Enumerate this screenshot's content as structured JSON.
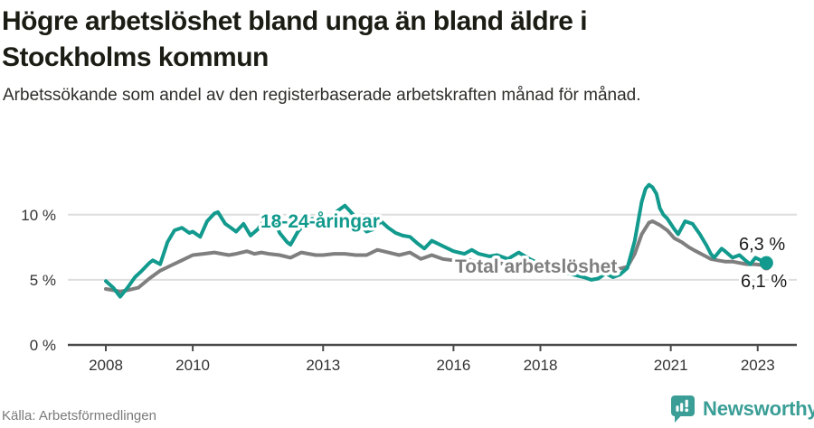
{
  "header": {
    "title": "Högre arbetslöshet bland unga än bland äldre i Stockholms kommun",
    "subtitle": "Arbetssökande som andel av den registerbaserade arbetskraften månad för månad."
  },
  "footer": {
    "source": "Källa: Arbetsförmedlingen",
    "brand": "Newsworthy"
  },
  "colors": {
    "youth_teal": "#119a8d",
    "total_gray": "#7f7f7f",
    "axis": "#4a4a4a",
    "gridline": "#dedede",
    "tick_text": "#333333",
    "end_label_text": "#1a1a1a",
    "brand_teal": "#3a9e96"
  },
  "chart_data": {
    "type": "line",
    "title": "Högre arbetslöshet bland unga än bland äldre i Stockholms kommun",
    "subtitle": "Arbetssökande som andel av den registerbaserade arbetskraften månad för månad.",
    "xlabel": "",
    "ylabel": "",
    "grid": "horizontal",
    "legend_position": "inline-labels",
    "x_axis": {
      "ticks": [
        2008,
        2010,
        2013,
        2016,
        2018,
        2021,
        2023
      ],
      "tick_labels": [
        "2008",
        "2010",
        "2013",
        "2016",
        "2018",
        "2021",
        "2023"
      ]
    },
    "y_axis": {
      "ticks": [
        0,
        5,
        10
      ],
      "tick_labels": [
        "0 %",
        "5 %",
        "10 %"
      ],
      "range": [
        0,
        13
      ]
    },
    "series": [
      {
        "id": "youth",
        "name": "18-24-åringar",
        "end_label": "6,3 %",
        "end_value": 6.3,
        "points": [
          [
            2008.0,
            4.9
          ],
          [
            2008.17,
            4.4
          ],
          [
            2008.33,
            3.7
          ],
          [
            2008.5,
            4.4
          ],
          [
            2008.67,
            5.2
          ],
          [
            2008.83,
            5.7
          ],
          [
            2009.0,
            6.3
          ],
          [
            2009.08,
            6.5
          ],
          [
            2009.25,
            6.2
          ],
          [
            2009.42,
            7.9
          ],
          [
            2009.58,
            8.8
          ],
          [
            2009.75,
            9.0
          ],
          [
            2009.92,
            8.6
          ],
          [
            2010.0,
            8.7
          ],
          [
            2010.17,
            8.3
          ],
          [
            2010.33,
            9.5
          ],
          [
            2010.5,
            10.1
          ],
          [
            2010.58,
            10.2
          ],
          [
            2010.75,
            9.3
          ],
          [
            2010.92,
            8.9
          ],
          [
            2011.0,
            8.7
          ],
          [
            2011.17,
            9.3
          ],
          [
            2011.33,
            8.4
          ],
          [
            2011.5,
            8.9
          ],
          [
            2011.67,
            9.7
          ],
          [
            2011.83,
            9.9
          ],
          [
            2012.0,
            8.6
          ],
          [
            2012.17,
            7.9
          ],
          [
            2012.25,
            7.7
          ],
          [
            2012.42,
            8.7
          ],
          [
            2012.58,
            9.3
          ],
          [
            2012.75,
            9.7
          ],
          [
            2012.92,
            9.4
          ],
          [
            2013.08,
            9.2
          ],
          [
            2013.25,
            10.1
          ],
          [
            2013.5,
            10.7
          ],
          [
            2013.67,
            10.1
          ],
          [
            2013.83,
            9.3
          ],
          [
            2014.0,
            8.7
          ],
          [
            2014.17,
            8.9
          ],
          [
            2014.33,
            9.5
          ],
          [
            2014.5,
            9.0
          ],
          [
            2014.67,
            8.6
          ],
          [
            2014.83,
            8.4
          ],
          [
            2015.0,
            8.3
          ],
          [
            2015.17,
            7.8
          ],
          [
            2015.33,
            7.4
          ],
          [
            2015.5,
            8.0
          ],
          [
            2015.75,
            7.6
          ],
          [
            2016.0,
            7.2
          ],
          [
            2016.25,
            7.0
          ],
          [
            2016.42,
            7.3
          ],
          [
            2016.58,
            7.0
          ],
          [
            2016.83,
            6.8
          ],
          [
            2017.0,
            6.9
          ],
          [
            2017.25,
            6.6
          ],
          [
            2017.5,
            7.1
          ],
          [
            2017.75,
            6.6
          ],
          [
            2018.0,
            6.2
          ],
          [
            2018.25,
            5.9
          ],
          [
            2018.5,
            5.6
          ],
          [
            2018.75,
            5.4
          ],
          [
            2019.0,
            5.2
          ],
          [
            2019.17,
            5.0
          ],
          [
            2019.33,
            5.1
          ],
          [
            2019.5,
            5.5
          ],
          [
            2019.67,
            5.2
          ],
          [
            2019.83,
            5.4
          ],
          [
            2020.0,
            5.9
          ],
          [
            2020.17,
            8.0
          ],
          [
            2020.33,
            11.0
          ],
          [
            2020.42,
            12.0
          ],
          [
            2020.5,
            12.3
          ],
          [
            2020.58,
            12.1
          ],
          [
            2020.67,
            11.6
          ],
          [
            2020.75,
            10.5
          ],
          [
            2020.83,
            10.0
          ],
          [
            2020.92,
            9.7
          ],
          [
            2021.08,
            8.9
          ],
          [
            2021.17,
            8.5
          ],
          [
            2021.33,
            9.5
          ],
          [
            2021.5,
            9.3
          ],
          [
            2021.67,
            8.5
          ],
          [
            2021.83,
            7.6
          ],
          [
            2021.92,
            7.0
          ],
          [
            2022.0,
            6.7
          ],
          [
            2022.17,
            7.4
          ],
          [
            2022.25,
            7.2
          ],
          [
            2022.42,
            6.7
          ],
          [
            2022.58,
            6.9
          ],
          [
            2022.75,
            6.4
          ],
          [
            2022.83,
            6.2
          ],
          [
            2022.95,
            6.7
          ],
          [
            2023.2,
            6.3
          ]
        ]
      },
      {
        "id": "total",
        "name": "Total arbetslöshet",
        "end_label": "6,1 %",
        "end_value": 6.1,
        "points": [
          [
            2008.0,
            4.3
          ],
          [
            2008.17,
            4.2
          ],
          [
            2008.33,
            4.1
          ],
          [
            2008.5,
            4.2
          ],
          [
            2008.75,
            4.4
          ],
          [
            2009.0,
            5.1
          ],
          [
            2009.25,
            5.7
          ],
          [
            2009.5,
            6.1
          ],
          [
            2009.75,
            6.5
          ],
          [
            2010.0,
            6.9
          ],
          [
            2010.25,
            7.0
          ],
          [
            2010.5,
            7.1
          ],
          [
            2010.67,
            7.0
          ],
          [
            2010.83,
            6.9
          ],
          [
            2011.0,
            7.0
          ],
          [
            2011.25,
            7.2
          ],
          [
            2011.42,
            7.0
          ],
          [
            2011.58,
            7.1
          ],
          [
            2011.75,
            7.0
          ],
          [
            2012.0,
            6.9
          ],
          [
            2012.25,
            6.7
          ],
          [
            2012.5,
            7.1
          ],
          [
            2012.67,
            7.0
          ],
          [
            2012.83,
            6.9
          ],
          [
            2013.0,
            6.9
          ],
          [
            2013.25,
            7.0
          ],
          [
            2013.5,
            7.0
          ],
          [
            2013.75,
            6.9
          ],
          [
            2014.0,
            6.9
          ],
          [
            2014.25,
            7.3
          ],
          [
            2014.5,
            7.1
          ],
          [
            2014.75,
            6.9
          ],
          [
            2015.0,
            7.1
          ],
          [
            2015.25,
            6.6
          ],
          [
            2015.5,
            6.9
          ],
          [
            2015.75,
            6.6
          ],
          [
            2016.0,
            6.5
          ],
          [
            2016.25,
            6.6
          ],
          [
            2016.5,
            6.4
          ],
          [
            2016.75,
            6.3
          ],
          [
            2017.0,
            6.3
          ],
          [
            2017.25,
            6.2
          ],
          [
            2017.5,
            6.2
          ],
          [
            2017.75,
            6.1
          ],
          [
            2018.0,
            6.0
          ],
          [
            2018.25,
            5.9
          ],
          [
            2018.5,
            5.9
          ],
          [
            2018.75,
            5.8
          ],
          [
            2019.0,
            5.7
          ],
          [
            2019.25,
            5.6
          ],
          [
            2019.5,
            5.7
          ],
          [
            2019.75,
            5.8
          ],
          [
            2020.0,
            6.0
          ],
          [
            2020.17,
            7.0
          ],
          [
            2020.33,
            8.5
          ],
          [
            2020.5,
            9.4
          ],
          [
            2020.58,
            9.5
          ],
          [
            2020.75,
            9.2
          ],
          [
            2020.92,
            8.8
          ],
          [
            2021.08,
            8.2
          ],
          [
            2021.25,
            7.9
          ],
          [
            2021.42,
            7.5
          ],
          [
            2021.58,
            7.2
          ],
          [
            2021.75,
            6.9
          ],
          [
            2021.92,
            6.6
          ],
          [
            2022.08,
            6.5
          ],
          [
            2022.25,
            6.4
          ],
          [
            2022.42,
            6.4
          ],
          [
            2022.58,
            6.3
          ],
          [
            2022.75,
            6.2
          ],
          [
            2022.92,
            6.2
          ],
          [
            2023.2,
            6.1
          ]
        ]
      }
    ]
  }
}
